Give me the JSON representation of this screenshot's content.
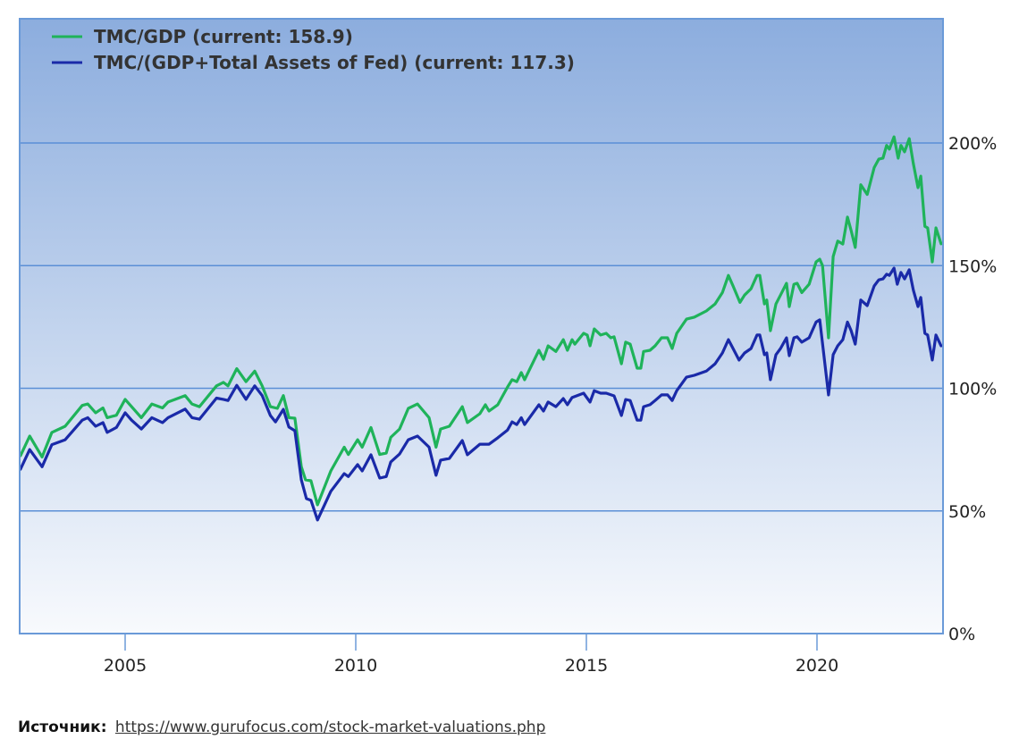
{
  "chart_data": {
    "type": "line",
    "title": "",
    "xlabel": "",
    "ylabel": "",
    "xlim": [
      2002.71,
      2022.77
    ],
    "ylim": [
      0,
      240
    ],
    "grid": true,
    "legend_position": "top-left",
    "x_ticks": [
      {
        "value": 2005,
        "label": "2005"
      },
      {
        "value": 2010,
        "label": "2010"
      },
      {
        "value": 2015,
        "label": "2015"
      },
      {
        "value": 2020,
        "label": "2020"
      }
    ],
    "y_ticks": [
      {
        "value": 0,
        "label": "0%"
      },
      {
        "value": 50,
        "label": "50%"
      },
      {
        "value": 100,
        "label": "100%"
      },
      {
        "value": 150,
        "label": "150%"
      },
      {
        "value": 200,
        "label": "200%"
      }
    ],
    "series": [
      {
        "name": "TMC/GDP",
        "legend_label": "TMC/GDP (current: 158.9)",
        "current": 158.9,
        "color": "#1fb35a",
        "points": [
          [
            2002.73,
            72.5
          ],
          [
            2002.93,
            80.5
          ],
          [
            2003.2,
            72
          ],
          [
            2003.41,
            82
          ],
          [
            2003.7,
            84.5
          ],
          [
            2004.07,
            93
          ],
          [
            2004.19,
            93.6
          ],
          [
            2004.36,
            90
          ],
          [
            2004.52,
            92
          ],
          [
            2004.61,
            88
          ],
          [
            2004.81,
            89
          ],
          [
            2005.0,
            95.5
          ],
          [
            2005.14,
            92.5
          ],
          [
            2005.35,
            88
          ],
          [
            2005.58,
            93.6
          ],
          [
            2005.81,
            92
          ],
          [
            2005.93,
            94.4
          ],
          [
            2006.3,
            97
          ],
          [
            2006.45,
            93.6
          ],
          [
            2006.61,
            92.5
          ],
          [
            2006.98,
            101
          ],
          [
            2007.13,
            102.4
          ],
          [
            2007.23,
            101
          ],
          [
            2007.42,
            108
          ],
          [
            2007.62,
            102.7
          ],
          [
            2007.81,
            107
          ],
          [
            2007.97,
            101
          ],
          [
            2008.15,
            92.5
          ],
          [
            2008.3,
            91.8
          ],
          [
            2008.43,
            97
          ],
          [
            2008.55,
            88
          ],
          [
            2008.68,
            87.8
          ],
          [
            2008.82,
            68
          ],
          [
            2008.91,
            62.7
          ],
          [
            2009.03,
            62.3
          ],
          [
            2009.17,
            52.5
          ],
          [
            2009.46,
            66.3
          ],
          [
            2009.75,
            76
          ],
          [
            2009.84,
            73
          ],
          [
            2010.04,
            79
          ],
          [
            2010.14,
            76
          ],
          [
            2010.33,
            84
          ],
          [
            2010.52,
            73
          ],
          [
            2010.66,
            73.6
          ],
          [
            2010.76,
            80
          ],
          [
            2010.95,
            83.4
          ],
          [
            2011.14,
            91.8
          ],
          [
            2011.34,
            93.6
          ],
          [
            2011.59,
            88
          ],
          [
            2011.74,
            76
          ],
          [
            2011.84,
            83.4
          ],
          [
            2012.03,
            84.5
          ],
          [
            2012.31,
            92.5
          ],
          [
            2012.42,
            86
          ],
          [
            2012.69,
            89.6
          ],
          [
            2012.81,
            93.3
          ],
          [
            2012.89,
            90.7
          ],
          [
            2013.08,
            93.3
          ],
          [
            2013.29,
            100.5
          ],
          [
            2013.39,
            103.5
          ],
          [
            2013.49,
            102.7
          ],
          [
            2013.59,
            106.4
          ],
          [
            2013.66,
            103.5
          ],
          [
            2013.97,
            115.5
          ],
          [
            2014.07,
            111.8
          ],
          [
            2014.17,
            117.3
          ],
          [
            2014.34,
            115
          ],
          [
            2014.5,
            119.8
          ],
          [
            2014.59,
            115.5
          ],
          [
            2014.69,
            119.8
          ],
          [
            2014.75,
            118
          ],
          [
            2014.94,
            122.4
          ],
          [
            2015.02,
            121.7
          ],
          [
            2015.08,
            117.3
          ],
          [
            2015.17,
            124.2
          ],
          [
            2015.31,
            121.7
          ],
          [
            2015.43,
            122.4
          ],
          [
            2015.53,
            120.6
          ],
          [
            2015.6,
            121
          ],
          [
            2015.76,
            110
          ],
          [
            2015.85,
            118.8
          ],
          [
            2015.95,
            118
          ],
          [
            2016.1,
            108.2
          ],
          [
            2016.18,
            108.2
          ],
          [
            2016.24,
            115
          ],
          [
            2016.38,
            115.5
          ],
          [
            2016.49,
            117.3
          ],
          [
            2016.63,
            120.6
          ],
          [
            2016.76,
            120.6
          ],
          [
            2016.86,
            116.2
          ],
          [
            2016.96,
            122.4
          ],
          [
            2017.17,
            128.2
          ],
          [
            2017.34,
            129
          ],
          [
            2017.6,
            131.5
          ],
          [
            2017.79,
            134.4
          ],
          [
            2017.95,
            139
          ],
          [
            2018.08,
            146
          ],
          [
            2018.18,
            141.7
          ],
          [
            2018.33,
            135
          ],
          [
            2018.43,
            138
          ],
          [
            2018.57,
            140.6
          ],
          [
            2018.7,
            146
          ],
          [
            2018.76,
            146
          ],
          [
            2018.86,
            134.4
          ],
          [
            2018.91,
            136
          ],
          [
            2018.99,
            123.5
          ],
          [
            2019.11,
            134.4
          ],
          [
            2019.21,
            138
          ],
          [
            2019.34,
            142.8
          ],
          [
            2019.4,
            133.3
          ],
          [
            2019.5,
            142.4
          ],
          [
            2019.57,
            142.8
          ],
          [
            2019.67,
            139
          ],
          [
            2019.83,
            142.4
          ],
          [
            2019.98,
            151.5
          ],
          [
            2020.06,
            152.6
          ],
          [
            2020.12,
            150
          ],
          [
            2020.25,
            120.6
          ],
          [
            2020.35,
            153.7
          ],
          [
            2020.45,
            160
          ],
          [
            2020.56,
            158.8
          ],
          [
            2020.66,
            169.8
          ],
          [
            2020.74,
            164.3
          ],
          [
            2020.83,
            157.4
          ],
          [
            2020.95,
            183
          ],
          [
            2021.09,
            179
          ],
          [
            2021.24,
            190
          ],
          [
            2021.34,
            193.4
          ],
          [
            2021.43,
            193.8
          ],
          [
            2021.51,
            199
          ],
          [
            2021.57,
            197.5
          ],
          [
            2021.67,
            202.5
          ],
          [
            2021.76,
            193.8
          ],
          [
            2021.82,
            199
          ],
          [
            2021.9,
            196.4
          ],
          [
            2022.0,
            201.8
          ],
          [
            2022.09,
            191.6
          ],
          [
            2022.19,
            181.8
          ],
          [
            2022.25,
            186.5
          ],
          [
            2022.34,
            166
          ],
          [
            2022.4,
            165.4
          ],
          [
            2022.5,
            151.5
          ],
          [
            2022.58,
            165.4
          ],
          [
            2022.69,
            158.9
          ]
        ]
      },
      {
        "name": "TMC/(GDP+Total Assets of Fed)",
        "legend_label": "TMC/(GDP+Total Assets of Fed) (current: 117.3)",
        "current": 117.3,
        "color": "#1a2aa8",
        "points": [
          [
            2002.73,
            67
          ],
          [
            2002.93,
            75
          ],
          [
            2003.2,
            68
          ],
          [
            2003.41,
            77
          ],
          [
            2003.7,
            79
          ],
          [
            2004.07,
            87
          ],
          [
            2004.19,
            88
          ],
          [
            2004.36,
            84.5
          ],
          [
            2004.52,
            86
          ],
          [
            2004.61,
            82
          ],
          [
            2004.81,
            84
          ],
          [
            2005.0,
            90
          ],
          [
            2005.14,
            87
          ],
          [
            2005.35,
            83.4
          ],
          [
            2005.58,
            88
          ],
          [
            2005.81,
            86
          ],
          [
            2005.93,
            88
          ],
          [
            2006.3,
            91.5
          ],
          [
            2006.45,
            88
          ],
          [
            2006.61,
            87.4
          ],
          [
            2006.98,
            96
          ],
          [
            2007.13,
            95.5
          ],
          [
            2007.23,
            95
          ],
          [
            2007.42,
            101.2
          ],
          [
            2007.62,
            95.5
          ],
          [
            2007.81,
            101
          ],
          [
            2007.97,
            97
          ],
          [
            2008.15,
            88.9
          ],
          [
            2008.26,
            86.3
          ],
          [
            2008.43,
            91.4
          ],
          [
            2008.55,
            84.2
          ],
          [
            2008.68,
            82.7
          ],
          [
            2008.82,
            62.7
          ],
          [
            2008.93,
            55
          ],
          [
            2009.03,
            54.3
          ],
          [
            2009.17,
            46.3
          ],
          [
            2009.46,
            58
          ],
          [
            2009.75,
            65.2
          ],
          [
            2009.84,
            64
          ],
          [
            2010.04,
            68.9
          ],
          [
            2010.14,
            66.3
          ],
          [
            2010.33,
            72.9
          ],
          [
            2010.52,
            63.4
          ],
          [
            2010.66,
            64
          ],
          [
            2010.76,
            70
          ],
          [
            2010.95,
            73.2
          ],
          [
            2011.14,
            79
          ],
          [
            2011.34,
            80.5
          ],
          [
            2011.59,
            76
          ],
          [
            2011.74,
            64.5
          ],
          [
            2011.84,
            70.7
          ],
          [
            2012.03,
            71.4
          ],
          [
            2012.31,
            78.7
          ],
          [
            2012.42,
            72.9
          ],
          [
            2012.69,
            77.2
          ],
          [
            2012.89,
            77.2
          ],
          [
            2013.08,
            79.8
          ],
          [
            2013.29,
            83
          ],
          [
            2013.39,
            86.3
          ],
          [
            2013.49,
            85.2
          ],
          [
            2013.59,
            88
          ],
          [
            2013.66,
            85.2
          ],
          [
            2013.97,
            93.3
          ],
          [
            2014.07,
            90.7
          ],
          [
            2014.17,
            94.4
          ],
          [
            2014.34,
            92.5
          ],
          [
            2014.5,
            95.8
          ],
          [
            2014.59,
            93.3
          ],
          [
            2014.69,
            96.2
          ],
          [
            2014.94,
            98
          ],
          [
            2015.08,
            94.4
          ],
          [
            2015.17,
            99
          ],
          [
            2015.31,
            98
          ],
          [
            2015.43,
            98
          ],
          [
            2015.6,
            96.9
          ],
          [
            2015.76,
            88.9
          ],
          [
            2015.85,
            95.4
          ],
          [
            2015.95,
            95
          ],
          [
            2016.1,
            87
          ],
          [
            2016.18,
            87
          ],
          [
            2016.24,
            92.5
          ],
          [
            2016.38,
            93.3
          ],
          [
            2016.49,
            95
          ],
          [
            2016.63,
            97.3
          ],
          [
            2016.76,
            97.3
          ],
          [
            2016.86,
            95
          ],
          [
            2016.96,
            99
          ],
          [
            2017.17,
            104.5
          ],
          [
            2017.34,
            105.3
          ],
          [
            2017.6,
            107
          ],
          [
            2017.79,
            110
          ],
          [
            2017.95,
            114.4
          ],
          [
            2018.08,
            119.8
          ],
          [
            2018.18,
            116.2
          ],
          [
            2018.31,
            111.5
          ],
          [
            2018.43,
            114.4
          ],
          [
            2018.57,
            116.2
          ],
          [
            2018.7,
            121.7
          ],
          [
            2018.76,
            121.7
          ],
          [
            2018.86,
            113.7
          ],
          [
            2018.91,
            114.4
          ],
          [
            2018.99,
            103.5
          ],
          [
            2019.11,
            113.7
          ],
          [
            2019.21,
            116.2
          ],
          [
            2019.34,
            120.6
          ],
          [
            2019.4,
            113.3
          ],
          [
            2019.5,
            120.6
          ],
          [
            2019.57,
            121
          ],
          [
            2019.67,
            118.8
          ],
          [
            2019.83,
            120.6
          ],
          [
            2019.98,
            127
          ],
          [
            2020.06,
            127.9
          ],
          [
            2020.25,
            97.3
          ],
          [
            2020.35,
            113.7
          ],
          [
            2020.45,
            117.3
          ],
          [
            2020.56,
            119.8
          ],
          [
            2020.66,
            127
          ],
          [
            2020.74,
            123.5
          ],
          [
            2020.83,
            118
          ],
          [
            2020.95,
            136
          ],
          [
            2021.09,
            133.7
          ],
          [
            2021.24,
            141.7
          ],
          [
            2021.34,
            144.2
          ],
          [
            2021.43,
            144.6
          ],
          [
            2021.51,
            146.5
          ],
          [
            2021.57,
            146
          ],
          [
            2021.67,
            149
          ],
          [
            2021.74,
            142.4
          ],
          [
            2021.82,
            147.2
          ],
          [
            2021.9,
            144.6
          ],
          [
            2022.0,
            148.3
          ],
          [
            2022.09,
            140
          ],
          [
            2022.19,
            133.3
          ],
          [
            2022.25,
            137
          ],
          [
            2022.34,
            122.4
          ],
          [
            2022.4,
            121.7
          ],
          [
            2022.5,
            111.5
          ],
          [
            2022.58,
            121.7
          ],
          [
            2022.69,
            117.3
          ]
        ]
      }
    ]
  },
  "style": {
    "plot_bg_top": "#8cadde",
    "plot_bg_bottom": "#f8fafd",
    "grid_color": "#5b8fd6",
    "frame_color": "#6a9ad8",
    "tick_color": "#6a9ad8"
  },
  "footer": {
    "label": "Источник:",
    "link_text": "https://www.gurufocus.com/stock-market-valuations.php"
  }
}
